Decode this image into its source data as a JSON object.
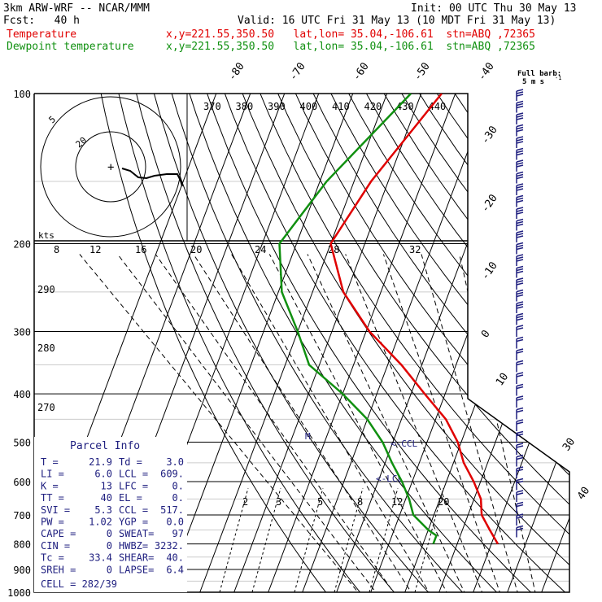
{
  "header": {
    "model": "3km ARW-WRF -- NCAR/MMM",
    "init": "Init: 00 UTC Thu 30 May 13",
    "fcst": "Fcst:   40 h",
    "valid": "Valid: 16 UTC Fri 31 May 13 (10 MDT Fri 31 May 13)",
    "temp_label": "Temperature",
    "dew_label": "Dewpoint temperature",
    "temp_loc": "x,y=221.55,350.50   lat,lon= 35.04,-106.61  stn=ABQ ,72365",
    "dew_loc": "x,y=221.55,350.50   lat,lon= 35.04,-106.61  stn=ABQ ,72365"
  },
  "colors": {
    "temperature": "#e00000",
    "dewpoint": "#109010",
    "barb": "#202080",
    "grid": "#000000"
  },
  "barb_legend": {
    "line1": "Full barb:",
    "line2": "5 m s",
    "sup": "-1"
  },
  "hodograph": {
    "units": "kts",
    "ring_labels": [
      "5",
      "20"
    ]
  },
  "chart_data": {
    "type": "skew-t",
    "pressure_levels": [
      100,
      200,
      300,
      400,
      500,
      600,
      700,
      800,
      900,
      1000
    ],
    "pressure_labels": [
      "100",
      "200",
      "300",
      "400",
      "500",
      "600",
      "700",
      "800",
      "900",
      "1000"
    ],
    "isotherm_labels": [
      "-80",
      "-70",
      "-60",
      "-50",
      "-40",
      "-30",
      "-20",
      "-10",
      "0",
      "10",
      "30",
      "40"
    ],
    "theta_e_labels": [
      "370",
      "380",
      "390",
      "400",
      "410",
      "420",
      "430",
      "440"
    ],
    "mixing_ratio_upper": [
      "8",
      "12",
      "16",
      "20",
      "24",
      "28",
      "32"
    ],
    "mixing_ratio_lower": [
      "2",
      "3",
      "5",
      "8",
      "12",
      "20"
    ],
    "theta_left": [
      "290",
      "280",
      "270"
    ],
    "temperature": {
      "name": "Temperature",
      "points": [
        [
          100,
          -44
        ],
        [
          150,
          -55
        ],
        [
          200,
          -60
        ],
        [
          250,
          -51
        ],
        [
          300,
          -39
        ],
        [
          350,
          -26
        ],
        [
          400,
          -16
        ],
        [
          450,
          -7
        ],
        [
          500,
          -1
        ],
        [
          550,
          3
        ],
        [
          600,
          8
        ],
        [
          650,
          12
        ],
        [
          700,
          14
        ],
        [
          750,
          18
        ],
        [
          800,
          21.9
        ]
      ]
    },
    "dewpoint": {
      "name": "Dewpoint temperature",
      "points": [
        [
          100,
          -53
        ],
        [
          150,
          -68
        ],
        [
          200,
          -75
        ],
        [
          250,
          -69
        ],
        [
          300,
          -60
        ],
        [
          350,
          -53
        ],
        [
          400,
          -40
        ],
        [
          450,
          -30
        ],
        [
          500,
          -23
        ],
        [
          550,
          -18
        ],
        [
          600,
          -13
        ],
        [
          650,
          -9
        ],
        [
          700,
          -6
        ],
        [
          750,
          0
        ],
        [
          770,
          3.0
        ],
        [
          800,
          3.0
        ]
      ]
    },
    "annotations": [
      "CCL",
      "LCL",
      "M"
    ]
  },
  "parcel": {
    "title": "Parcel  Info",
    "rows": [
      [
        "T  =",
        "21.9",
        "Td =",
        "3.0"
      ],
      [
        "LI =",
        "6.0",
        "LCL =",
        "609."
      ],
      [
        "K  =",
        "13",
        "LFC =",
        "0."
      ],
      [
        "TT =",
        "40",
        "EL  =",
        "0."
      ],
      [
        "SVI =",
        "5.3",
        "CCL =",
        "517."
      ],
      [
        "PW =",
        "1.02",
        "YGP =",
        "0.0"
      ],
      [
        "CAPE =",
        "0",
        "SWEAT=",
        "97"
      ],
      [
        "CIN =",
        "0",
        "HWBZ=",
        "3232."
      ],
      [
        "Tc =",
        "33.4",
        "SHEAR=",
        "40."
      ],
      [
        "SREH =",
        "0",
        "LAPSE=",
        "6.4"
      ]
    ],
    "cell": "CELL = 282/39"
  }
}
